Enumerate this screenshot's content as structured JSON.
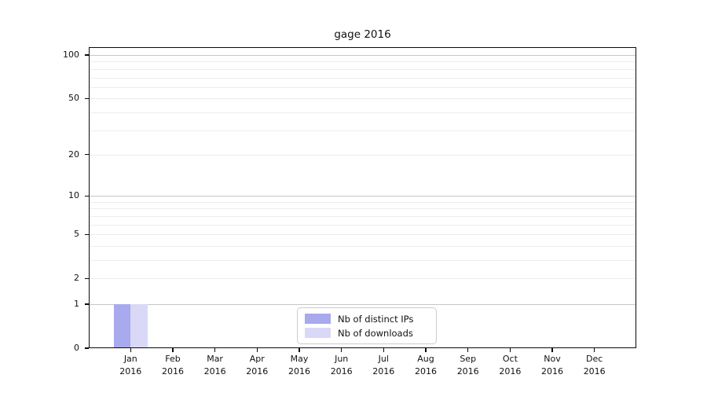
{
  "chart_data": {
    "type": "bar",
    "title": "gage 2016",
    "categories": [
      "Jan",
      "Feb",
      "Mar",
      "Apr",
      "May",
      "Jun",
      "Jul",
      "Aug",
      "Sep",
      "Oct",
      "Nov",
      "Dec"
    ],
    "year_label": "2016",
    "series": [
      {
        "name": "Nb of distinct IPs",
        "color": "#a9a9ee",
        "values": [
          1,
          0,
          0,
          0,
          0,
          0,
          0,
          0,
          0,
          0,
          0,
          0
        ]
      },
      {
        "name": "Nb of downloads",
        "color": "#d9d9f7",
        "values": [
          1,
          0,
          0,
          0,
          0,
          0,
          0,
          0,
          0,
          0,
          0,
          0
        ]
      }
    ],
    "xlabel": "",
    "ylabel": "",
    "y_scale": "log1p",
    "ylim": [
      0,
      100
    ],
    "y_tick_values": [
      100,
      50,
      20,
      10,
      5,
      2,
      1,
      0
    ],
    "y_major_gridlines": [
      1,
      10,
      100
    ],
    "y_minor_gridlines": [
      2,
      3,
      4,
      5,
      6,
      7,
      8,
      9,
      20,
      30,
      40,
      50,
      60,
      70,
      80,
      90
    ],
    "grid": true,
    "legend_position": "lower center",
    "colors": {
      "background": "#ffffff",
      "axis": "#0a0a0a",
      "major_grid": "#c7c7c7",
      "minor_grid": "#ededed",
      "text": "#111111"
    }
  }
}
